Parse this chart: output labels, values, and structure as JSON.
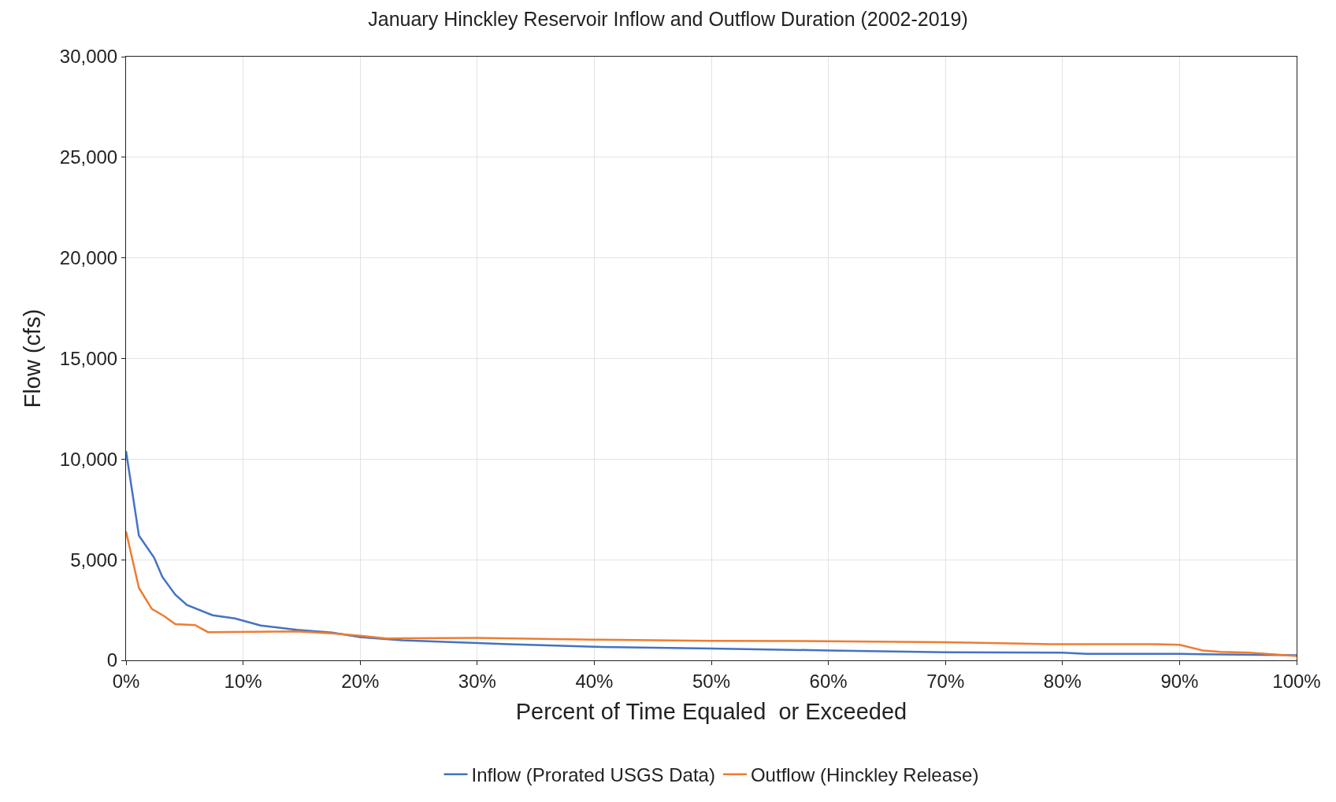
{
  "chart_data": {
    "type": "line",
    "title": "January Hinckley Reservoir Inflow and Outflow Duration (2002-2019)",
    "xlabel": "Percent of Time Equaled  or Exceeded",
    "ylabel": "Flow (cfs)",
    "xlim": [
      0,
      100
    ],
    "ylim": [
      0,
      30000
    ],
    "xticks": [
      {
        "value": 0,
        "label": "0%"
      },
      {
        "value": 10,
        "label": "10%"
      },
      {
        "value": 20,
        "label": "20%"
      },
      {
        "value": 30,
        "label": "30%"
      },
      {
        "value": 40,
        "label": "40%"
      },
      {
        "value": 50,
        "label": "50%"
      },
      {
        "value": 60,
        "label": "60%"
      },
      {
        "value": 70,
        "label": "70%"
      },
      {
        "value": 80,
        "label": "80%"
      },
      {
        "value": 90,
        "label": "90%"
      },
      {
        "value": 100,
        "label": "100%"
      }
    ],
    "yticks": [
      {
        "value": 0,
        "label": "0"
      },
      {
        "value": 5000,
        "label": "5,000"
      },
      {
        "value": 10000,
        "label": "10,000"
      },
      {
        "value": 15000,
        "label": "15,000"
      },
      {
        "value": 20000,
        "label": "20,000"
      },
      {
        "value": 25000,
        "label": "25,000"
      },
      {
        "value": 30000,
        "label": "30,000"
      }
    ],
    "grid": true,
    "legend": "bottom",
    "marker": "none",
    "line_style": "solid",
    "series": [
      {
        "name": "Inflow (Prorated USGS Data)",
        "color": "#4472c4",
        "x": [
          0,
          1.1,
          2.4,
          3.1,
          4.2,
          5.2,
          7.4,
          9.3,
          11.5,
          14.6,
          17.6,
          20,
          23.6,
          28.1,
          30,
          32.7,
          40,
          50,
          60,
          70,
          80,
          82,
          90,
          100
        ],
        "values": [
          10400,
          6200,
          5100,
          4150,
          3270,
          2750,
          2240,
          2080,
          1730,
          1520,
          1380,
          1150,
          1000,
          900,
          860,
          800,
          670,
          590,
          490,
          400,
          380,
          320,
          320,
          250
        ]
      },
      {
        "name": "Outflow (Hinckley Release)",
        "color": "#ed7d31",
        "x": [
          0,
          1.1,
          2.2,
          3.3,
          4.2,
          5.9,
          7.0,
          14.6,
          17.6,
          20,
          22.3,
          30,
          40,
          50,
          60,
          70,
          79,
          88,
          90,
          92,
          93.5,
          96,
          100
        ],
        "values": [
          6400,
          3600,
          2560,
          2180,
          1800,
          1750,
          1400,
          1440,
          1340,
          1220,
          1090,
          1110,
          1030,
          970,
          950,
          900,
          800,
          800,
          770,
          490,
          420,
          380,
          220
        ]
      }
    ]
  }
}
